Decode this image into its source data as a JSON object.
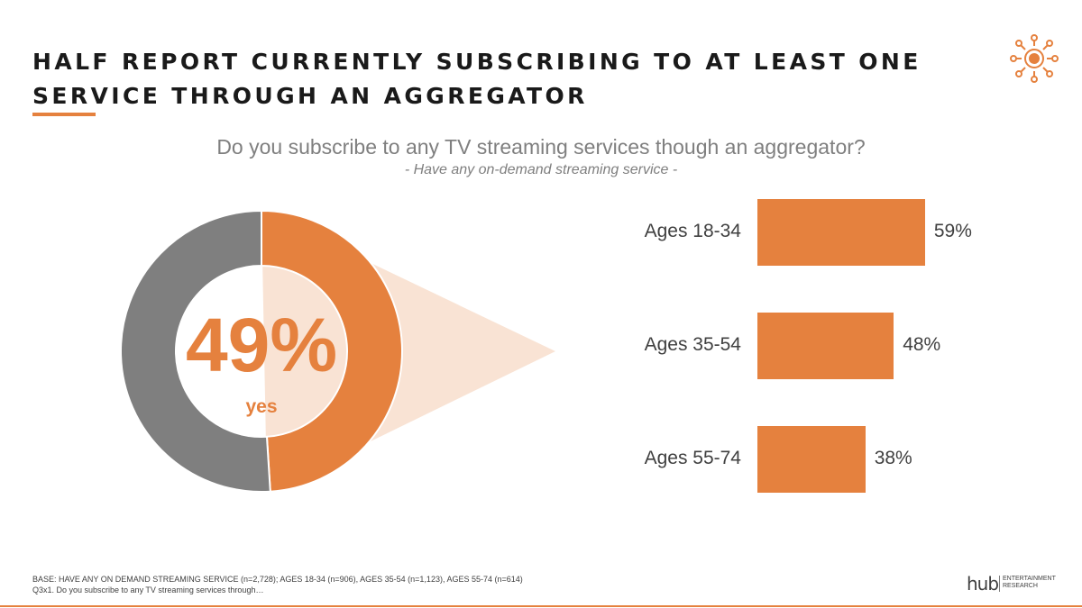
{
  "header": {
    "title_line1": "HALF REPORT CURRENTLY SUBSCRIBING TO AT LEAST ONE",
    "title_line2": "SERVICE THROUGH AN AGGREGATOR"
  },
  "question": "Do you subscribe to any TV streaming services though an aggregator?",
  "subquestion": "- Have any on-demand streaming service -",
  "colors": {
    "accent": "#e5813e",
    "gray": "#7f7f7f",
    "callout": "#f9e3d4",
    "text": "#404040"
  },
  "chart_data": [
    {
      "type": "pie",
      "style": "donut",
      "categories": [
        "yes",
        ""
      ],
      "values": [
        49,
        51
      ],
      "center_value": "49%",
      "center_label": "yes"
    },
    {
      "type": "bar",
      "orientation": "horizontal",
      "categories": [
        "Ages 18-34",
        "Ages 35-54",
        "Ages 55-74"
      ],
      "values": [
        59,
        48,
        38
      ],
      "value_labels": [
        "59%",
        "48%",
        "38%"
      ],
      "ylim": [
        0,
        100
      ]
    }
  ],
  "footer": {
    "base_line1": "BASE: HAVE ANY ON DEMAND STREAMING SERVICE (n=2,728); AGES 18-34  (n=906), AGES 35-54 (n=1,123), AGES 55-74 (n=614)",
    "base_line2": "Q3x1. Do you subscribe to any TV streaming services through…",
    "brand_mark": "hub",
    "brand_line1": "ENTERTAINMENT",
    "brand_line2": "RESEARCH"
  },
  "icons": {
    "logo": "sun-logo-icon"
  }
}
